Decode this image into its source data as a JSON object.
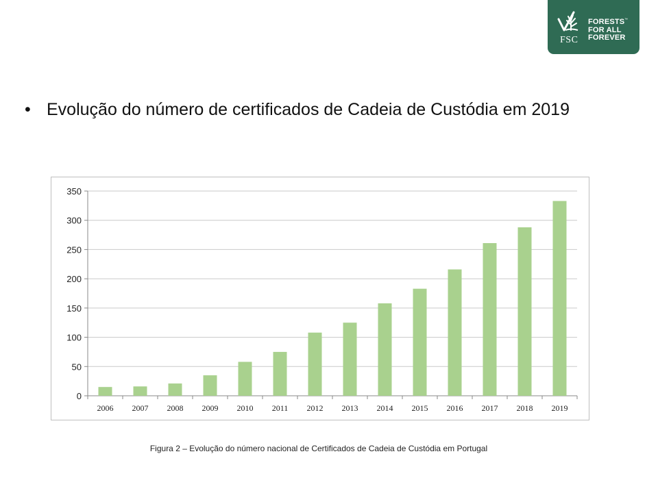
{
  "logo": {
    "brand": "FSC",
    "tagline": [
      "FORESTS",
      "FOR ALL",
      "FOREVER"
    ],
    "tm": "™",
    "color": "#2f6b54"
  },
  "slide": {
    "bullet": "•",
    "heading": "Evolução do número de certificados de Cadeia de Custódia em 2019"
  },
  "caption": "Figura 2 – Evolução do número nacional de Certificados de Cadeia de Custódia em Portugal",
  "chart_data": {
    "type": "bar",
    "title": "",
    "xlabel": "",
    "ylabel": "",
    "categories": [
      "2006",
      "2007",
      "2008",
      "2009",
      "2010",
      "2011",
      "2012",
      "2013",
      "2014",
      "2015",
      "2016",
      "2017",
      "2018",
      "2019"
    ],
    "values": [
      15,
      16,
      21,
      35,
      58,
      75,
      108,
      125,
      158,
      183,
      216,
      261,
      288,
      333
    ],
    "ylim": [
      0,
      350
    ],
    "yticks": [
      0,
      50,
      100,
      150,
      200,
      250,
      300,
      350
    ],
    "grid": true,
    "legend": "none",
    "bar_color": "#a9d18e",
    "grid_color": "#c9c9c9"
  }
}
